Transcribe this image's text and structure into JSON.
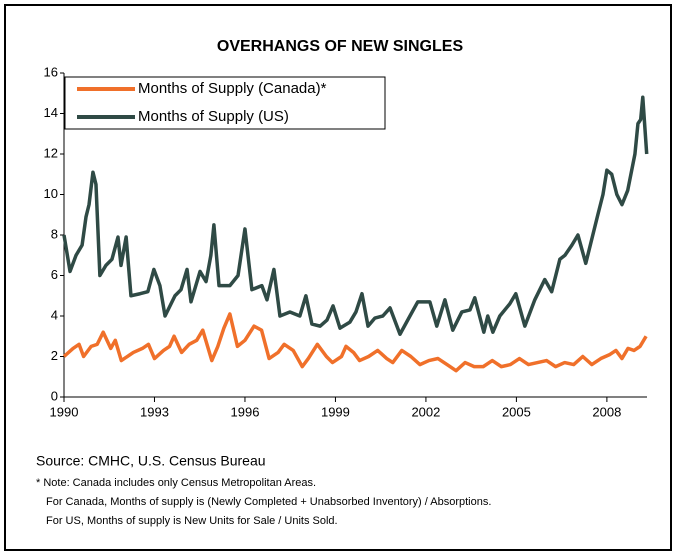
{
  "chart_data": {
    "type": "line",
    "title": "OVERHANGS OF NEW SINGLES",
    "xlim": [
      1990,
      2009.33
    ],
    "xticks": [
      1990,
      1993,
      1996,
      1999,
      2002,
      2005,
      2008
    ],
    "ylim": [
      0,
      16
    ],
    "yticks": [
      0,
      2,
      4,
      6,
      8,
      10,
      12,
      14,
      16
    ],
    "grid": false,
    "legend": "upper left",
    "series": [
      {
        "name": "Months of Supply (Canada)*",
        "color": "#f0702a",
        "x": [
          1990.0,
          1990.3,
          1990.5,
          1990.65,
          1990.9,
          1991.1,
          1991.3,
          1991.55,
          1991.7,
          1991.9,
          1992.3,
          1992.6,
          1992.8,
          1993.0,
          1993.3,
          1993.5,
          1993.65,
          1993.9,
          1994.15,
          1994.4,
          1994.6,
          1994.9,
          1995.1,
          1995.3,
          1995.5,
          1995.75,
          1996.0,
          1996.3,
          1996.55,
          1996.8,
          1997.1,
          1997.3,
          1997.6,
          1997.9,
          1998.1,
          1998.4,
          1998.7,
          1998.9,
          1999.2,
          1999.35,
          1999.6,
          1999.8,
          2000.1,
          2000.4,
          2000.7,
          2000.9,
          2001.2,
          2001.5,
          2001.8,
          2002.1,
          2002.4,
          2002.7,
          2003.0,
          2003.3,
          2003.6,
          2003.9,
          2004.2,
          2004.5,
          2004.8,
          2005.1,
          2005.4,
          2005.7,
          2006.0,
          2006.3,
          2006.6,
          2006.9,
          2007.2,
          2007.5,
          2007.8,
          2008.1,
          2008.3,
          2008.5,
          2008.7,
          2008.9,
          2009.1,
          2009.3
        ],
        "values": [
          2.0,
          2.4,
          2.6,
          2.0,
          2.5,
          2.6,
          3.2,
          2.4,
          2.8,
          1.8,
          2.2,
          2.4,
          2.6,
          1.9,
          2.3,
          2.5,
          3.0,
          2.2,
          2.6,
          2.8,
          3.3,
          1.8,
          2.5,
          3.4,
          4.1,
          2.5,
          2.8,
          3.5,
          3.3,
          1.9,
          2.2,
          2.6,
          2.3,
          1.5,
          1.9,
          2.6,
          2.0,
          1.7,
          2.0,
          2.5,
          2.2,
          1.8,
          2.0,
          2.3,
          1.9,
          1.7,
          2.3,
          2.0,
          1.6,
          1.8,
          1.9,
          1.6,
          1.3,
          1.7,
          1.5,
          1.5,
          1.8,
          1.5,
          1.6,
          1.9,
          1.6,
          1.7,
          1.8,
          1.5,
          1.7,
          1.6,
          2.0,
          1.6,
          1.9,
          2.1,
          2.3,
          1.9,
          2.4,
          2.3,
          2.5,
          3.0
        ]
      },
      {
        "name": "Months of Supply (US)",
        "color": "#2f4a45",
        "x": [
          1990.0,
          1990.2,
          1990.4,
          1990.6,
          1990.73,
          1990.83,
          1990.96,
          1991.06,
          1991.19,
          1991.39,
          1991.59,
          1991.79,
          1991.89,
          1992.06,
          1992.22,
          1992.52,
          1992.78,
          1992.98,
          1993.18,
          1993.35,
          1993.68,
          1993.88,
          1994.08,
          1994.21,
          1994.51,
          1994.71,
          1994.87,
          1994.97,
          1995.14,
          1995.5,
          1995.77,
          1996.0,
          1996.23,
          1996.56,
          1996.73,
          1996.96,
          1997.16,
          1997.49,
          1997.82,
          1998.02,
          1998.22,
          1998.49,
          1998.72,
          1998.92,
          1999.15,
          1999.48,
          1999.68,
          1999.88,
          2000.08,
          2000.31,
          2000.57,
          2000.81,
          2001.14,
          2001.47,
          2001.73,
          2002.13,
          2002.36,
          2002.63,
          2002.89,
          2003.19,
          2003.46,
          2003.62,
          2003.92,
          2004.05,
          2004.22,
          2004.45,
          2004.78,
          2004.98,
          2005.28,
          2005.61,
          2005.94,
          2006.17,
          2006.44,
          2006.61,
          2006.84,
          2007.04,
          2007.3,
          2007.7,
          2007.87,
          2008.0,
          2008.16,
          2008.33,
          2008.5,
          2008.69,
          2008.93,
          2009.03,
          2009.12,
          2009.19,
          2009.32
        ],
        "values": [
          8.0,
          6.2,
          7.0,
          7.5,
          8.9,
          9.5,
          11.1,
          10.5,
          6.0,
          6.5,
          6.8,
          7.9,
          6.5,
          7.9,
          5.0,
          5.1,
          5.2,
          6.3,
          5.5,
          4.0,
          5.0,
          5.3,
          6.3,
          4.7,
          6.2,
          5.7,
          7.0,
          8.5,
          5.5,
          5.5,
          6.0,
          8.3,
          5.3,
          5.5,
          4.8,
          6.3,
          4.0,
          4.2,
          4.0,
          5.0,
          3.6,
          3.5,
          3.8,
          4.5,
          3.4,
          3.7,
          4.2,
          5.1,
          3.5,
          3.9,
          4.0,
          4.4,
          3.1,
          4.0,
          4.7,
          4.7,
          3.5,
          4.8,
          3.3,
          4.2,
          4.3,
          4.9,
          3.2,
          4.0,
          3.2,
          4.0,
          4.6,
          5.1,
          3.5,
          4.8,
          5.8,
          5.2,
          6.8,
          7.0,
          7.5,
          8.0,
          6.6,
          9.0,
          10.0,
          11.2,
          11.0,
          10.0,
          9.5,
          10.2,
          12.0,
          13.5,
          13.7,
          14.8,
          12.0
        ]
      }
    ],
    "source": "Source: CMHC, U.S. Census Bureau",
    "notes": [
      "* Note:  Canada includes only Census Metropolitan Areas.",
      "For Canada, Months of supply is  (Newly Completed + Unabsorbed Inventory) / Absorptions.",
      "For US, Months of supply is New Units for Sale / Units Sold."
    ]
  }
}
